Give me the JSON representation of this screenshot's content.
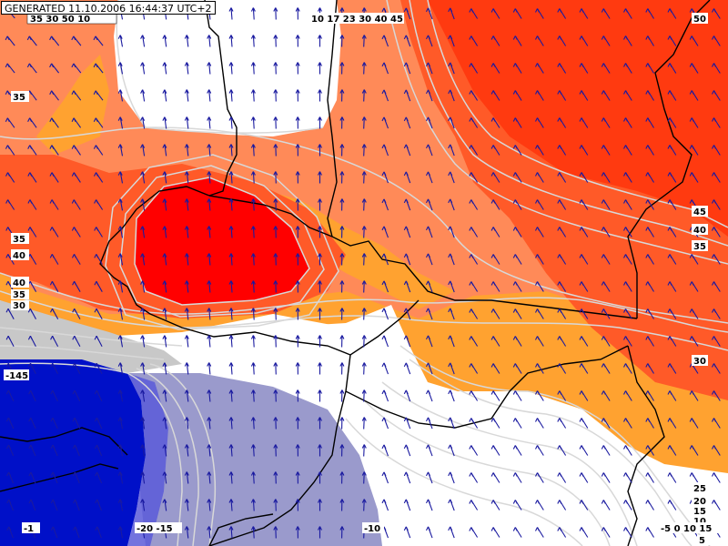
{
  "title_stamp": "GENERATED 11.10.2006 16:44:37 UTC+2",
  "colors": {
    "white": "#ffffff",
    "light_orange": "#ffa230",
    "salmon": "#ff8a58",
    "orange_red": "#ff5a28",
    "deep_red": "#ff3a10",
    "red": "#ff0000",
    "grey": "#c8c8c8",
    "lavender": "#9a9acc",
    "deep_blue": "#0010c8",
    "contour_line": "#d8d8d8",
    "border_line": "#000000",
    "wind_arrow": "#1a1aa0"
  },
  "contour_labels": [
    {
      "id": "top-left-strip",
      "text": "35 30 50 10"
    },
    {
      "id": "left-35-top",
      "text": "35"
    },
    {
      "id": "left-35-mid",
      "text": "35"
    },
    {
      "id": "left-40a",
      "text": "40"
    },
    {
      "id": "left-40b",
      "text": "40"
    },
    {
      "id": "left-35b",
      "text": "35"
    },
    {
      "id": "left-30",
      "text": "30"
    },
    {
      "id": "left-minus145",
      "text": "-145"
    },
    {
      "id": "top-center-strip",
      "text": "10 17 23 30 40 45"
    },
    {
      "id": "right-50",
      "text": "50"
    },
    {
      "id": "right-45",
      "text": "45"
    },
    {
      "id": "right-40",
      "text": "40"
    },
    {
      "id": "right-35",
      "text": "35"
    },
    {
      "id": "right-30",
      "text": "30"
    },
    {
      "id": "right-25",
      "text": "25"
    },
    {
      "id": "right-20",
      "text": "20"
    },
    {
      "id": "right-15",
      "text": "15"
    },
    {
      "id": "right-10",
      "text": "10"
    },
    {
      "id": "right-5",
      "text": "5"
    },
    {
      "id": "bottom-left-strip",
      "text": "-1"
    },
    {
      "id": "bottom-center-strip",
      "text": "-20 -15"
    },
    {
      "id": "bottom-mid",
      "text": "-10"
    },
    {
      "id": "bottom-right-strip",
      "text": "-5 0 10 15"
    }
  ]
}
